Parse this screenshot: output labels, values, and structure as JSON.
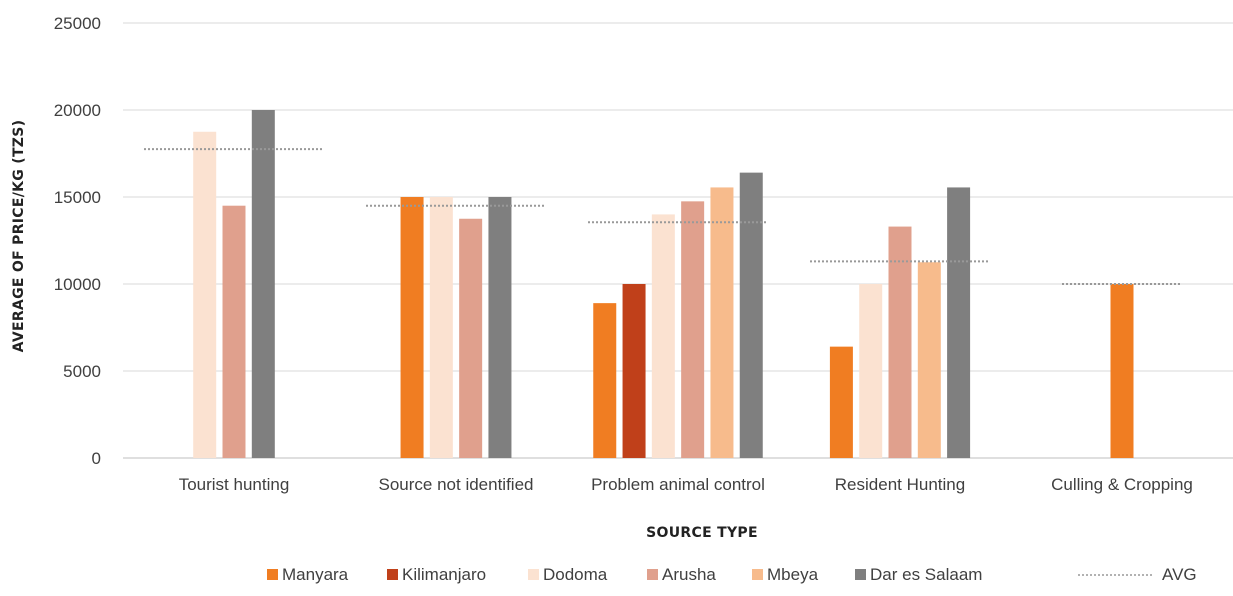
{
  "chart_data": {
    "type": "bar",
    "title": "",
    "xlabel": "SOURCE TYPE",
    "ylabel": "AVERAGE OF PRICE/KG (TZS)",
    "ylim": [
      0,
      25000
    ],
    "yticks": [
      "0",
      "5000",
      "10000",
      "15000",
      "20000",
      "25000"
    ],
    "grid": "horizontal",
    "legend_position": "bottom",
    "categories": [
      "Tourist hunting",
      "Source not identified",
      "Problem animal control",
      "Resident Hunting",
      "Culling & Cropping"
    ],
    "series": [
      {
        "name": "Manyara",
        "color": "#f07d22",
        "values": [
          null,
          15000,
          8900,
          6400,
          10000
        ]
      },
      {
        "name": "Kilimanjaro",
        "color": "#c0401a",
        "values": [
          null,
          null,
          10000,
          null,
          null
        ]
      },
      {
        "name": "Dodoma",
        "color": "#fbe2d1",
        "values": [
          18750,
          15000,
          14000,
          10000,
          null
        ]
      },
      {
        "name": "Arusha",
        "color": "#e0a08d",
        "values": [
          14500,
          13750,
          14750,
          13300,
          null
        ]
      },
      {
        "name": "Mbeya",
        "color": "#f7bb8c",
        "values": [
          null,
          null,
          15550,
          11250,
          null
        ]
      },
      {
        "name": "Dar es Salaam",
        "color": "#7f7f7f",
        "values": [
          20000,
          15000,
          16400,
          15550,
          null
        ]
      }
    ],
    "avg": {
      "name": "AVG",
      "color": "#999999",
      "values": [
        17750,
        14500,
        13550,
        11300,
        10000
      ]
    }
  }
}
